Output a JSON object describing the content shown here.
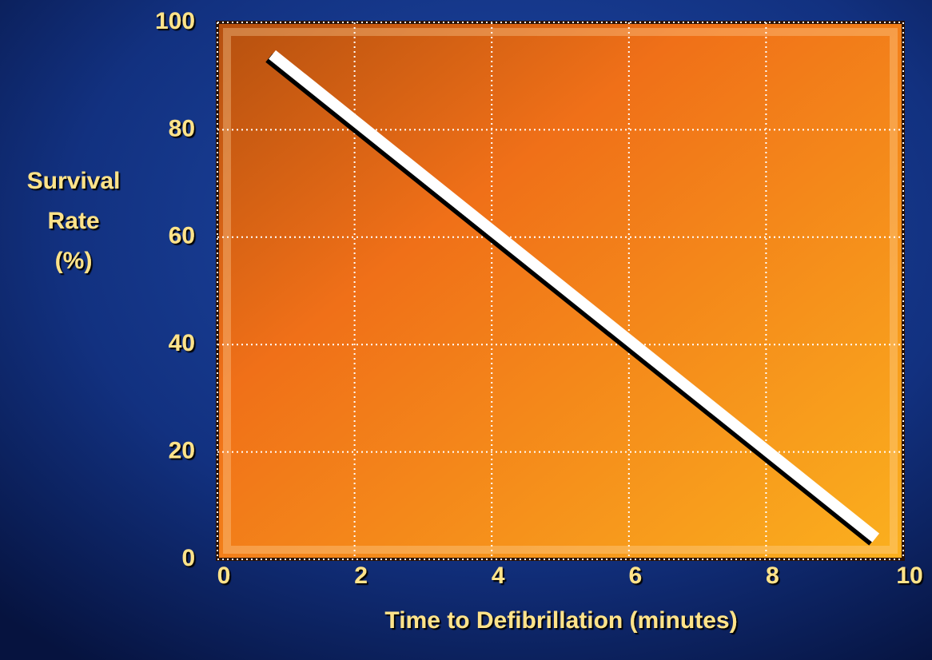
{
  "chart_data": {
    "type": "line",
    "ylabel": [
      "Survival",
      "Rate",
      "(%)"
    ],
    "xlabel": "Time to Defibrillation (minutes)",
    "x": [
      0.8,
      9.6
    ],
    "series": [
      {
        "color": "#ffffff",
        "values": [
          94,
          4
        ]
      }
    ],
    "xlim": [
      0,
      10
    ],
    "xticks": [
      0,
      2,
      4,
      6,
      8,
      10
    ],
    "ylim": [
      0,
      100
    ],
    "yticks": [
      0,
      20,
      40,
      60,
      80,
      100
    ],
    "grid": true
  }
}
